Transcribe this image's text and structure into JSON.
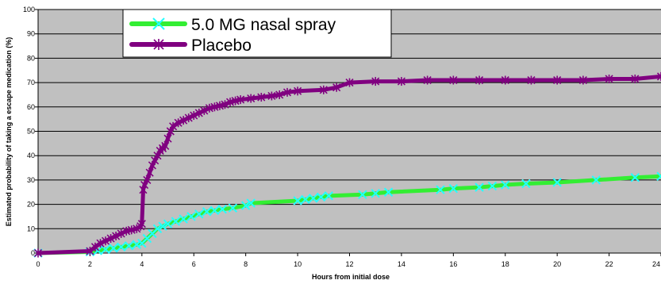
{
  "chart_data": {
    "type": "line",
    "xlabel": "Hours from initial dose",
    "ylabel": "Estimated probability of taking a escape medication (%)",
    "xlim": [
      0,
      24
    ],
    "ylim": [
      0,
      100
    ],
    "x_ticks": [
      "0",
      "2",
      "4",
      "6",
      "8",
      "10",
      "12",
      "14",
      "16",
      "18",
      "20",
      "22",
      "24"
    ],
    "y_ticks": [
      "0",
      "10",
      "20",
      "30",
      "40",
      "50",
      "60",
      "70",
      "80",
      "90",
      "100"
    ],
    "grid": true,
    "plot_background": "#c0c0c0",
    "legend_position": "top-center",
    "series": [
      {
        "name": "5.0 MG nasal spray",
        "color": "#33ee33",
        "marker_color": "#22ffff",
        "marker": "x",
        "x": [
          0,
          2.0,
          2.3,
          2.6,
          2.9,
          3.2,
          3.5,
          3.8,
          4.0,
          4.2,
          4.4,
          4.6,
          4.8,
          5.0,
          5.3,
          5.6,
          5.9,
          6.2,
          6.5,
          6.8,
          7.1,
          7.5,
          8.0,
          8.2,
          10.0,
          10.3,
          10.6,
          10.9,
          11.2,
          12.5,
          13.0,
          13.5,
          15.5,
          16.0,
          17.0,
          17.5,
          18.0,
          18.8,
          20.0,
          21.5,
          23.0,
          24.0
        ],
        "y": [
          0,
          0.5,
          1.0,
          1.5,
          2.0,
          2.5,
          3.0,
          3.5,
          4.0,
          6.0,
          8.0,
          10.0,
          11.0,
          12.0,
          13.0,
          14.0,
          15.0,
          16.0,
          17.0,
          17.5,
          18.0,
          18.5,
          19.5,
          20.5,
          21.5,
          22.0,
          22.5,
          23.0,
          23.5,
          24.0,
          24.5,
          25.0,
          26.0,
          26.5,
          27.0,
          27.5,
          28.0,
          28.5,
          29.0,
          30.0,
          31.0,
          31.5
        ]
      },
      {
        "name": "Placebo",
        "color": "#800080",
        "marker_color": "#800080",
        "marker": "star",
        "x": [
          0,
          2.0,
          2.2,
          2.4,
          2.6,
          2.8,
          3.0,
          3.2,
          3.4,
          3.6,
          3.8,
          3.95,
          4.0,
          4.05,
          4.1,
          4.2,
          4.3,
          4.4,
          4.5,
          4.6,
          4.7,
          4.8,
          4.9,
          5.0,
          5.1,
          5.2,
          5.4,
          5.6,
          5.8,
          6.0,
          6.2,
          6.4,
          6.6,
          6.8,
          7.0,
          7.2,
          7.4,
          7.6,
          7.8,
          8.2,
          8.6,
          9.0,
          9.3,
          9.6,
          10.0,
          11.0,
          11.5,
          12.0,
          13.0,
          14.0,
          15.0,
          16.0,
          17.0,
          18.0,
          19.0,
          20.0,
          21.0,
          22.0,
          23.0,
          24.0
        ],
        "y": [
          0,
          0.8,
          2.5,
          4.0,
          5.0,
          6.0,
          7.0,
          8.0,
          9.0,
          9.5,
          10.0,
          11.0,
          12.0,
          26.0,
          28.0,
          30.0,
          33.0,
          36.0,
          38.0,
          40.0,
          42.0,
          43.0,
          44.0,
          47.0,
          50.0,
          52.0,
          53.5,
          54.5,
          55.5,
          56.5,
          57.5,
          58.5,
          59.5,
          60.0,
          60.5,
          61.0,
          62.0,
          62.5,
          63.0,
          63.5,
          64.0,
          64.5,
          65.0,
          66.0,
          66.5,
          67.0,
          68.0,
          70.0,
          70.5,
          70.5,
          71.0,
          71.0,
          71.0,
          71.0,
          71.0,
          71.0,
          71.0,
          71.5,
          71.5,
          72.5
        ]
      }
    ]
  }
}
